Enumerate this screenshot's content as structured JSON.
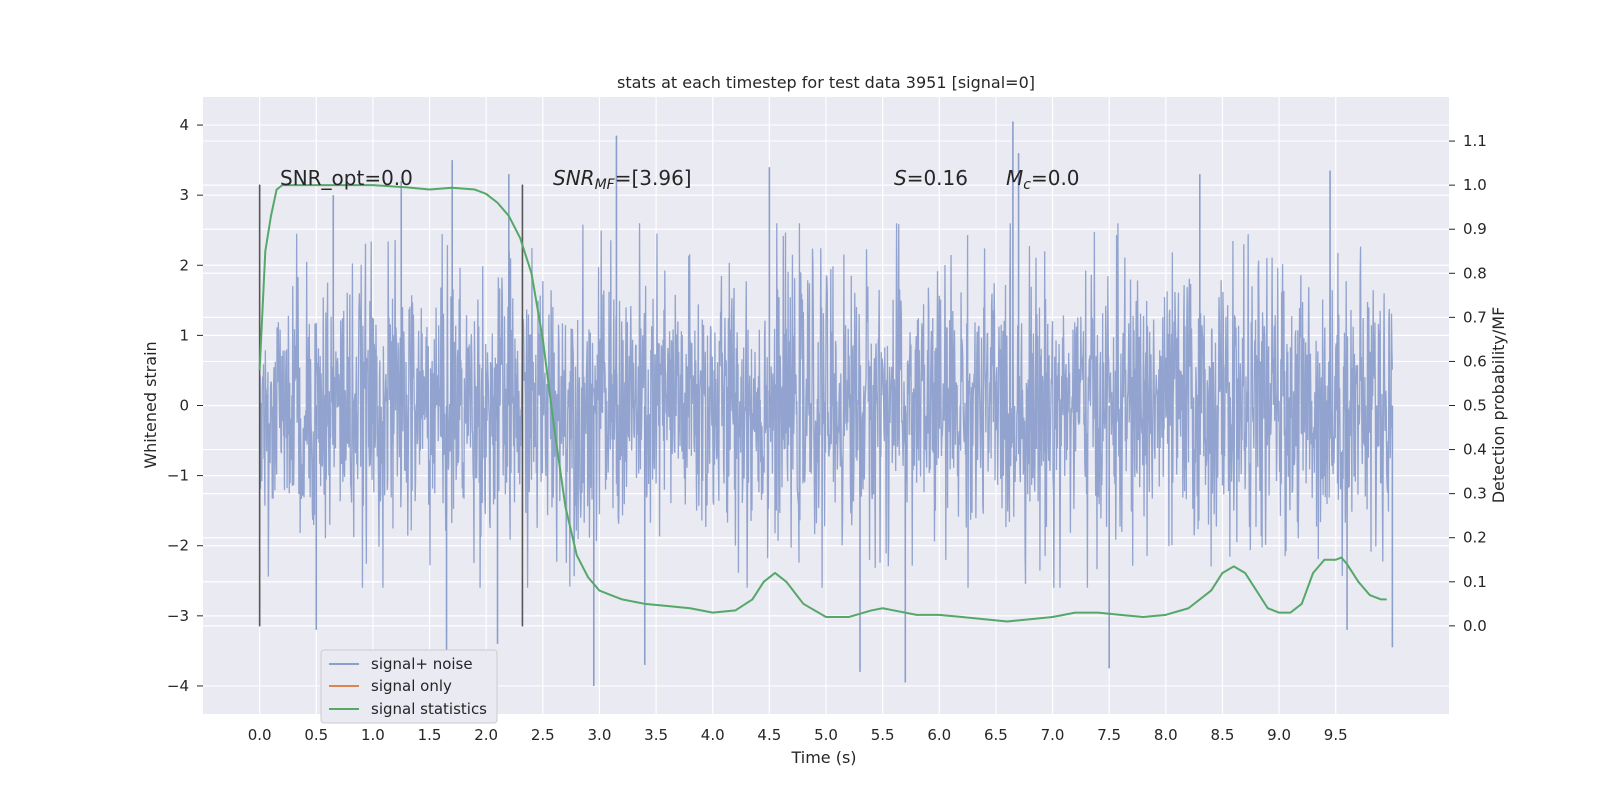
{
  "chart_data": {
    "type": "line",
    "title": "stats at each timestep for test data 3951 [signal=0]",
    "xlabel": "Time (s)",
    "ylabel": "Whitened strain",
    "y2label": "Detection probability/MF",
    "xlim": [
      -0.5,
      10.5
    ],
    "ylim": [
      -4.4,
      4.4
    ],
    "y2lim": [
      -0.2,
      1.2
    ],
    "x_ticks": [
      "0.0",
      "0.5",
      "1.0",
      "1.5",
      "2.0",
      "2.5",
      "3.0",
      "3.5",
      "4.0",
      "4.5",
      "5.0",
      "5.5",
      "6.0",
      "6.5",
      "7.0",
      "7.5",
      "8.0",
      "8.5",
      "9.0",
      "9.5"
    ],
    "y_ticks": [
      "4",
      "3",
      "2",
      "1",
      "0",
      "−1",
      "−2",
      "−3",
      "−4"
    ],
    "y2_ticks": [
      "1.1",
      "1.0",
      "0.9",
      "0.8",
      "0.7",
      "0.6",
      "0.5",
      "0.4",
      "0.3",
      "0.2",
      "0.1",
      "0.0"
    ],
    "grid": true,
    "legend_position": "lower-left",
    "colors": {
      "background": "#eaeaf2",
      "noise": "#8c9fcb",
      "signal_only": "#dd8452",
      "statistics": "#55a868",
      "vline": "#555555"
    },
    "legend": [
      {
        "label": "signal+ noise",
        "color": "#8c9fcb"
      },
      {
        "label": "signal only",
        "color": "#dd8452"
      },
      {
        "label": "signal statistics",
        "color": "#55a868"
      }
    ],
    "annotations": {
      "snr_opt": "SNR_opt=0.0",
      "snr_mf_main": "SNR",
      "snr_mf_sub": "MF",
      "snr_mf_value": "=[3.96]",
      "s_main": "S",
      "s_value": "=0.16",
      "mc_main": "M",
      "mc_sub": "c",
      "mc_value": "=0.0"
    },
    "vertical_lines_x": [
      0.0,
      2.32
    ],
    "vertical_lines_yrange": [
      -3.15,
      3.15
    ],
    "noise_series": {
      "name": "signal+ noise",
      "x_range": [
        0.0,
        10.0
      ],
      "envelope_typical": [
        -1.9,
        1.9
      ],
      "spike_peaks": [
        [
          0.65,
          3.0
        ],
        [
          1.25,
          3.2
        ],
        [
          1.7,
          3.5
        ],
        [
          2.2,
          3.3
        ],
        [
          3.15,
          3.85
        ],
        [
          4.5,
          3.4
        ],
        [
          6.65,
          4.05
        ],
        [
          6.7,
          3.6
        ],
        [
          8.3,
          3.3
        ],
        [
          9.45,
          3.35
        ]
      ],
      "spike_troughs": [
        [
          0.5,
          -3.2
        ],
        [
          1.65,
          -3.5
        ],
        [
          2.1,
          -3.4
        ],
        [
          2.95,
          -4.0
        ],
        [
          3.4,
          -3.7
        ],
        [
          5.3,
          -3.8
        ],
        [
          5.7,
          -3.95
        ],
        [
          7.5,
          -3.75
        ],
        [
          9.6,
          -3.2
        ],
        [
          10.0,
          -3.45
        ]
      ]
    },
    "statistics_series": {
      "name": "signal statistics",
      "x": [
        0.0,
        0.05,
        0.1,
        0.15,
        0.2,
        0.3,
        0.5,
        1.0,
        1.3,
        1.5,
        1.7,
        1.9,
        2.0,
        2.1,
        2.2,
        2.3,
        2.4,
        2.5,
        2.6,
        2.7,
        2.8,
        2.9,
        3.0,
        3.1,
        3.2,
        3.4,
        3.6,
        3.8,
        4.0,
        4.2,
        4.35,
        4.45,
        4.55,
        4.65,
        4.8,
        5.0,
        5.2,
        5.4,
        5.5,
        5.6,
        5.8,
        6.0,
        6.2,
        6.4,
        6.6,
        6.8,
        7.0,
        7.2,
        7.4,
        7.6,
        7.8,
        8.0,
        8.2,
        8.4,
        8.5,
        8.6,
        8.7,
        8.8,
        8.9,
        9.0,
        9.1,
        9.2,
        9.3,
        9.4,
        9.5,
        9.55,
        9.6,
        9.7,
        9.8,
        9.9,
        9.95
      ],
      "y": [
        0.58,
        0.85,
        0.93,
        0.99,
        1.0,
        1.0,
        1.0,
        1.0,
        0.995,
        0.99,
        0.994,
        0.99,
        0.98,
        0.96,
        0.93,
        0.88,
        0.8,
        0.65,
        0.45,
        0.27,
        0.16,
        0.11,
        0.08,
        0.07,
        0.06,
        0.05,
        0.045,
        0.04,
        0.03,
        0.035,
        0.06,
        0.1,
        0.12,
        0.1,
        0.05,
        0.02,
        0.02,
        0.035,
        0.04,
        0.035,
        0.025,
        0.025,
        0.02,
        0.015,
        0.01,
        0.015,
        0.02,
        0.03,
        0.03,
        0.025,
        0.02,
        0.025,
        0.04,
        0.08,
        0.12,
        0.135,
        0.12,
        0.08,
        0.04,
        0.03,
        0.03,
        0.05,
        0.12,
        0.15,
        0.15,
        0.155,
        0.14,
        0.1,
        0.07,
        0.06,
        0.06
      ]
    }
  }
}
